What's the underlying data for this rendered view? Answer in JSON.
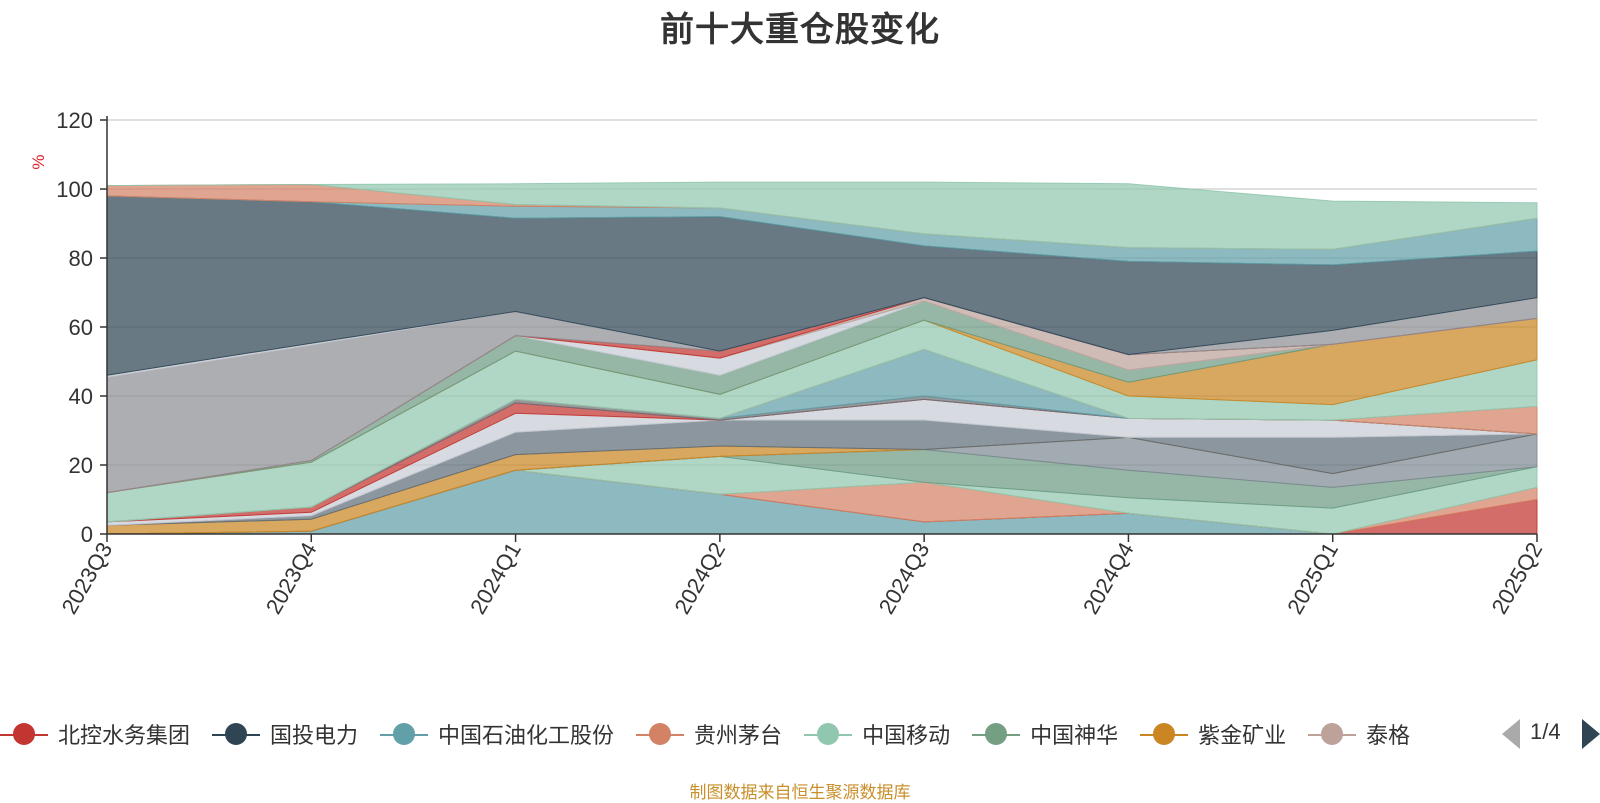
{
  "title": "前十大重仓股变化",
  "source": "制图数据来自恒生聚源数据库",
  "legend_page": "1/4",
  "chart_data": {
    "type": "area",
    "stacked": true,
    "title": "前十大重仓股变化",
    "ylabel": "%",
    "ylim": [
      0,
      120
    ],
    "yticks": [
      0,
      20,
      40,
      60,
      80,
      100,
      120
    ],
    "grid": true,
    "legend_position": "bottom",
    "categories": [
      "2023Q3",
      "2023Q4",
      "2024Q1",
      "2024Q2",
      "2024Q3",
      "2024Q4",
      "2025Q1",
      "2025Q2"
    ],
    "series": [
      {
        "name": "中国石油化工股份",
        "color": "#61a0a8",
        "values": [
          0,
          0.8,
          18.5,
          11.5,
          3.5,
          6,
          0,
          0
        ]
      },
      {
        "name": "北控水务集团",
        "color": "#c23531",
        "values": [
          0,
          0,
          0,
          0,
          0,
          0,
          0,
          10
        ]
      },
      {
        "name": "贵州茅台",
        "color": "#d48265",
        "values": [
          0,
          0,
          0,
          0,
          11.5,
          0,
          0,
          3.5
        ]
      },
      {
        "name": "中国移动",
        "color": "#91c7ae",
        "values": [
          0,
          0,
          0,
          11,
          0,
          4.5,
          7.5,
          6
        ]
      },
      {
        "name": "中国神华",
        "color": "#6e9b83",
        "values": [
          0,
          0,
          0,
          0,
          9.5,
          8,
          6,
          0
        ]
      },
      {
        "name": "",
        "color": "#7f8a94",
        "values": [
          0,
          0,
          0,
          0,
          0,
          9.5,
          4,
          9.5
        ]
      },
      {
        "name": "紫金矿业",
        "color": "#ca8622",
        "values": [
          2.5,
          3.5,
          4.5,
          3,
          0,
          0,
          0,
          0
        ]
      },
      {
        "name": "",
        "color": "#606d78",
        "values": [
          0,
          1,
          6.5,
          7.5,
          8.5,
          0,
          10.5,
          0
        ]
      },
      {
        "name": "",
        "color": "#c8ccd4",
        "values": [
          1,
          1,
          5.5,
          0,
          6,
          5.5,
          5,
          0
        ]
      },
      {
        "name": "北控水务集团",
        "color": "#c23531",
        "values": [
          0,
          1.5,
          3,
          0,
          0,
          0,
          0,
          0
        ]
      },
      {
        "name": "",
        "color": "#6e7074",
        "values": [
          0,
          0,
          1,
          0.5,
          1,
          0,
          0,
          0
        ]
      },
      {
        "name": "中国石油化工股份",
        "color": "#61a0a8",
        "values": [
          0,
          0,
          0,
          0,
          13.5,
          0,
          0,
          0
        ]
      },
      {
        "name": "贵州茅台",
        "color": "#d48265",
        "values": [
          0,
          0,
          0,
          0,
          0,
          0,
          0,
          8
        ]
      },
      {
        "name": "中国移动",
        "color": "#91c7ae",
        "values": [
          8.5,
          13,
          14,
          7,
          8.5,
          6.5,
          4.5,
          13.5
        ]
      },
      {
        "name": "紫金矿业",
        "color": "#ca8622",
        "values": [
          0,
          0,
          0,
          0,
          0,
          4,
          17.5,
          12
        ]
      },
      {
        "name": "中国神华",
        "color": "#6e9b83",
        "values": [
          0,
          0.5,
          4.5,
          5.5,
          5.5,
          3.5,
          0,
          0
        ]
      },
      {
        "name": "",
        "color": "#c8ccd4",
        "values": [
          0,
          0,
          0,
          5,
          0,
          0,
          0,
          0
        ]
      },
      {
        "name": "泰格",
        "color": "#bda29a",
        "values": [
          0,
          0,
          0,
          0,
          1,
          4.5,
          0,
          0
        ]
      },
      {
        "name": "北控水务集团",
        "color": "#c23531",
        "values": [
          0,
          0,
          0,
          2,
          0,
          0,
          0,
          0
        ]
      },
      {
        "name": "",
        "color": "#8d8f94",
        "values": [
          33.5,
          33.5,
          7,
          0,
          0,
          0,
          4,
          6
        ]
      },
      {
        "name": "",
        "color": "#c8ccd4",
        "values": [
          0.5,
          0.5,
          0,
          0,
          0,
          0,
          0,
          0
        ]
      },
      {
        "name": "国投电力",
        "color": "#2f4554",
        "values": [
          52,
          41,
          27,
          39,
          15,
          27,
          19,
          13.5
        ]
      },
      {
        "name": "中国石油化工股份",
        "color": "#61a0a8",
        "values": [
          0,
          0,
          3.5,
          2.5,
          3.5,
          4,
          4.5,
          9.5
        ]
      },
      {
        "name": "贵州茅台",
        "color": "#d48265",
        "values": [
          3,
          5,
          0.5,
          0,
          0,
          0,
          0,
          0
        ]
      },
      {
        "name": "中国移动",
        "color": "#91c7ae",
        "values": [
          0,
          0,
          6,
          7.5,
          15,
          18.5,
          14,
          4.5
        ]
      }
    ]
  },
  "legend": [
    {
      "label": "北控水务集团",
      "color": "#c23531"
    },
    {
      "label": "国投电力",
      "color": "#2f4554"
    },
    {
      "label": "中国石油化工股份",
      "color": "#61a0a8"
    },
    {
      "label": "贵州茅台",
      "color": "#d48265"
    },
    {
      "label": "中国移动",
      "color": "#91c7ae"
    },
    {
      "label": "中国神华",
      "color": "#749f83"
    },
    {
      "label": "紫金矿业",
      "color": "#ca8622"
    },
    {
      "label": "泰格",
      "color": "#bda29a"
    }
  ]
}
